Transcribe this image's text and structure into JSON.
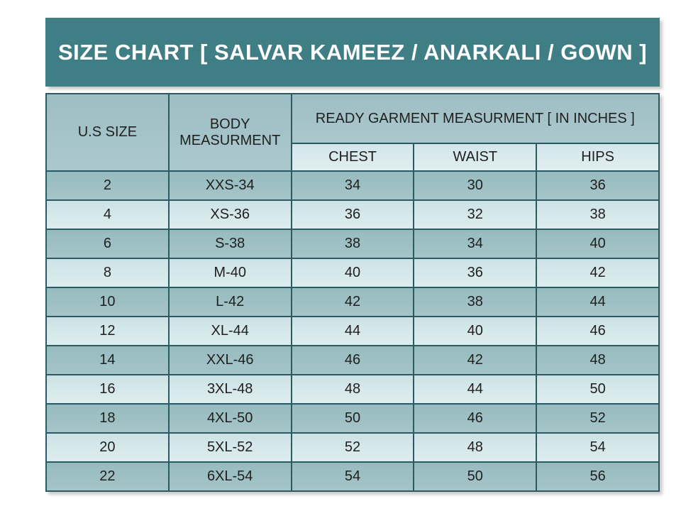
{
  "title": "SIZE CHART [ SALVAR KAMEEZ / ANARKALI / GOWN ]",
  "chart_data": {
    "type": "table",
    "title": "SIZE CHART [ SALVAR KAMEEZ / ANARKALI / GOWN ]",
    "headers": {
      "us_size": "U.S SIZE",
      "body": "BODY MEASURMENT",
      "ready": "READY GARMENT MEASURMENT [ IN INCHES ]",
      "chest": "CHEST",
      "waist": "WAIST",
      "hips": "HIPS"
    },
    "rows": [
      {
        "us_size": "2",
        "body": "XXS-34",
        "chest": "34",
        "waist": "30",
        "hips": "36"
      },
      {
        "us_size": "4",
        "body": "XS-36",
        "chest": "36",
        "waist": "32",
        "hips": "38"
      },
      {
        "us_size": "6",
        "body": "S-38",
        "chest": "38",
        "waist": "34",
        "hips": "40"
      },
      {
        "us_size": "8",
        "body": "M-40",
        "chest": "40",
        "waist": "36",
        "hips": "42"
      },
      {
        "us_size": "10",
        "body": "L-42",
        "chest": "42",
        "waist": "38",
        "hips": "44"
      },
      {
        "us_size": "12",
        "body": "XL-44",
        "chest": "44",
        "waist": "40",
        "hips": "46"
      },
      {
        "us_size": "14",
        "body": "XXL-46",
        "chest": "46",
        "waist": "42",
        "hips": "48"
      },
      {
        "us_size": "16",
        "body": "3XL-48",
        "chest": "48",
        "waist": "44",
        "hips": "50"
      },
      {
        "us_size": "18",
        "body": "4XL-50",
        "chest": "50",
        "waist": "46",
        "hips": "52"
      },
      {
        "us_size": "20",
        "body": "5XL-52",
        "chest": "52",
        "waist": "48",
        "hips": "54"
      },
      {
        "us_size": "22",
        "body": "6XL-54",
        "chest": "54",
        "waist": "50",
        "hips": "56"
      }
    ]
  },
  "colors": {
    "banner_teal": "#3f7e85",
    "banner_text": "#ffffff",
    "header_cell_bg": "#a4c3c8",
    "subheader_cell_bg": "#d9eaed",
    "row_dark_bg": "#9dbfc3",
    "row_light_bg": "#d5e7e9",
    "border": "#2c5a62",
    "cell_text": "#1f1f1f",
    "page_bg": "#ffffff"
  }
}
